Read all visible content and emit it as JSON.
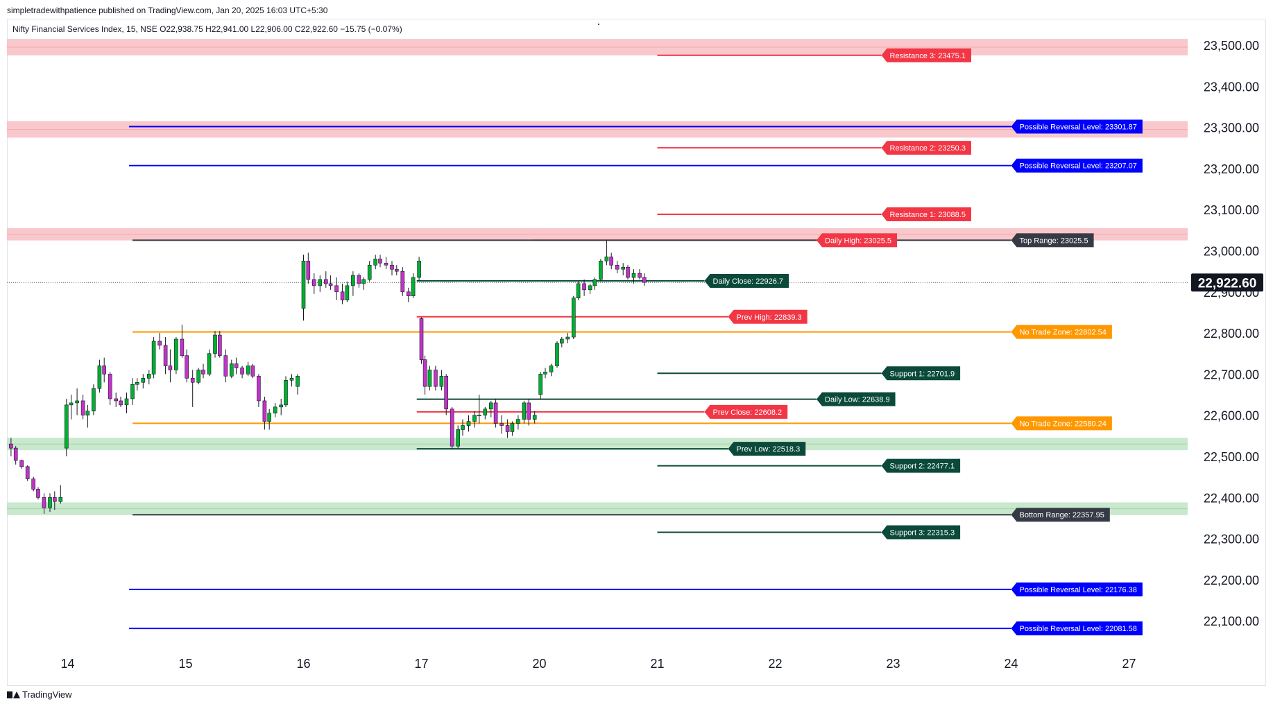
{
  "header": {
    "publisher": "simpletradewithpatience published on TradingView.com, Jan 20, 2025 16:03 UTC+5:30",
    "legend": "Nifty Financial Services Index, 15, NSE  O22,938.75  H22,941.00  L22,906.00  C22,922.60  −15.75 (−0.07%)"
  },
  "footer": {
    "brand": "TradingView",
    "logo_icon": "tradingview-logo-icon"
  },
  "colors": {
    "resistance": "#f23645",
    "support": "#0b4a3a",
    "reversal": "#0000ff",
    "no_trade": "#ff9800",
    "range": "#363a45",
    "up": "#00b031",
    "down": "#c233c8",
    "zone_red": "#f8c2c6",
    "zone_green": "#c3e6c8"
  },
  "chart_data": {
    "type": "candlestick",
    "symbol": "Nifty Financial Services Index",
    "interval": "15",
    "exchange": "NSE",
    "last_price_label": "22,922.60",
    "last_price": 22922.6,
    "ylim": [
      22000,
      23560
    ],
    "y_ticks": [
      {
        "value": 22100,
        "label": "22,100.00"
      },
      {
        "value": 22200,
        "label": "22,200.00"
      },
      {
        "value": 22300,
        "label": "22,300.00"
      },
      {
        "value": 22400,
        "label": "22,400.00"
      },
      {
        "value": 22500,
        "label": "22,500.00"
      },
      {
        "value": 22600,
        "label": "22,600.00"
      },
      {
        "value": 22700,
        "label": "22,700.00"
      },
      {
        "value": 22800,
        "label": "22,800.00"
      },
      {
        "value": 22900,
        "label": "22,900.00"
      },
      {
        "value": 23000,
        "label": "23,000.00"
      },
      {
        "value": 23100,
        "label": "23,100.00"
      },
      {
        "value": 23200,
        "label": "23,200.00"
      },
      {
        "value": 23300,
        "label": "23,300.00"
      },
      {
        "value": 23400,
        "label": "23,400.00"
      },
      {
        "value": 23500,
        "label": "23,500.00"
      }
    ],
    "x_ticks": [
      {
        "t": 1,
        "label": "14"
      },
      {
        "t": 2,
        "label": "15"
      },
      {
        "t": 3,
        "label": "16"
      },
      {
        "t": 4,
        "label": "17"
      },
      {
        "t": 5,
        "label": "20"
      },
      {
        "t": 6,
        "label": "21"
      },
      {
        "t": 7,
        "label": "22"
      },
      {
        "t": 8,
        "label": "23"
      },
      {
        "t": 9,
        "label": "24"
      },
      {
        "t": 10,
        "label": "27"
      }
    ],
    "xlim": [
      0.5,
      10.5
    ],
    "zones": [
      {
        "kind": "red",
        "from": 23475,
        "to": 23515
      },
      {
        "kind": "red",
        "from": 23275,
        "to": 23315
      },
      {
        "kind": "red",
        "from": 23025,
        "to": 23055
      },
      {
        "kind": "green",
        "from": 22515,
        "to": 22545
      },
      {
        "kind": "green",
        "from": 22357,
        "to": 22388
      }
    ],
    "levels": [
      {
        "label": "Resistance 3: 23475.1",
        "value": 23475.1,
        "kind": "resistance",
        "x_start": 6.0,
        "x_end": 7.9
      },
      {
        "label": "Possible Reversal Level: 23301.87",
        "value": 23301.87,
        "kind": "reversal",
        "x_start": 1.52,
        "x_end": 9.0
      },
      {
        "label": "Resistance 2: 23250.3",
        "value": 23250.3,
        "kind": "resistance",
        "x_start": 6.0,
        "x_end": 7.9
      },
      {
        "label": "Possible Reversal Level: 23207.07",
        "value": 23207.07,
        "kind": "reversal",
        "x_start": 1.52,
        "x_end": 9.0
      },
      {
        "label": "Resistance 1: 23088.5",
        "value": 23088.5,
        "kind": "resistance",
        "x_start": 6.0,
        "x_end": 7.9
      },
      {
        "label": "Daily High: 23025.5",
        "value": 23025.5,
        "kind": "resistance",
        "x_start": 4.95,
        "x_end": 7.35
      },
      {
        "label": "Top Range: 23025.5",
        "value": 23025.5,
        "kind": "range",
        "x_start": 1.55,
        "x_end": 9.0
      },
      {
        "label": "Daily Close: 22926.7",
        "value": 22926.7,
        "kind": "support",
        "x_start": 3.96,
        "x_end": 6.4
      },
      {
        "label": "Prev High: 22839.3",
        "value": 22839.3,
        "kind": "resistance",
        "x_start": 3.96,
        "x_end": 6.6
      },
      {
        "label": "No Trade Zone: 22802.54",
        "value": 22802.54,
        "kind": "no_trade",
        "x_start": 1.55,
        "x_end": 9.0
      },
      {
        "label": "Support 1: 22701.9",
        "value": 22701.9,
        "kind": "support",
        "x_start": 6.0,
        "x_end": 7.9
      },
      {
        "label": "Daily Low: 22638.9",
        "value": 22638.9,
        "kind": "support",
        "x_start": 3.96,
        "x_end": 7.35
      },
      {
        "label": "Prev Close: 22608.2",
        "value": 22608.2,
        "kind": "resistance",
        "x_start": 3.96,
        "x_end": 6.4
      },
      {
        "label": "No Trade Zone: 22580.24",
        "value": 22580.24,
        "kind": "no_trade",
        "x_start": 1.55,
        "x_end": 9.0
      },
      {
        "label": "Prev Low: 22518.3",
        "value": 22518.3,
        "kind": "support",
        "x_start": 3.96,
        "x_end": 6.6
      },
      {
        "label": "Support 2: 22477.1",
        "value": 22477.1,
        "kind": "support",
        "x_start": 6.0,
        "x_end": 7.9
      },
      {
        "label": "Bottom Range: 22357.95",
        "value": 22357.95,
        "kind": "range",
        "x_start": 1.55,
        "x_end": 9.0
      },
      {
        "label": "Support 3: 22315.3",
        "value": 22315.3,
        "kind": "support",
        "x_start": 6.0,
        "x_end": 7.9
      },
      {
        "label": "Possible Reversal Level: 22176.38",
        "value": 22176.38,
        "kind": "reversal",
        "x_start": 1.52,
        "x_end": 9.0
      },
      {
        "label": "Possible Reversal Level: 22081.58",
        "value": 22081.58,
        "kind": "reversal",
        "x_start": 1.52,
        "x_end": 9.0
      }
    ],
    "candles": [
      {
        "t": 0.52,
        "o": 22530,
        "h": 22545,
        "l": 22500,
        "c": 22520
      },
      {
        "t": 0.56,
        "o": 22520,
        "h": 22525,
        "l": 22480,
        "c": 22490
      },
      {
        "t": 0.61,
        "o": 22490,
        "h": 22492,
        "l": 22470,
        "c": 22475
      },
      {
        "t": 0.66,
        "o": 22475,
        "h": 22478,
        "l": 22440,
        "c": 22445
      },
      {
        "t": 0.71,
        "o": 22445,
        "h": 22450,
        "l": 22415,
        "c": 22420
      },
      {
        "t": 0.75,
        "o": 22420,
        "h": 22425,
        "l": 22395,
        "c": 22400
      },
      {
        "t": 0.8,
        "o": 22400,
        "h": 22410,
        "l": 22360,
        "c": 22375
      },
      {
        "t": 0.85,
        "o": 22375,
        "h": 22410,
        "l": 22365,
        "c": 22400
      },
      {
        "t": 0.89,
        "o": 22400,
        "h": 22415,
        "l": 22370,
        "c": 22390
      },
      {
        "t": 0.94,
        "o": 22390,
        "h": 22430,
        "l": 22385,
        "c": 22400
      },
      {
        "t": 0.99,
        "o": 22520,
        "h": 22640,
        "l": 22500,
        "c": 22625
      },
      {
        "t": 1.03,
        "o": 22625,
        "h": 22650,
        "l": 22590,
        "c": 22630
      },
      {
        "t": 1.08,
        "o": 22630,
        "h": 22665,
        "l": 22600,
        "c": 22635
      },
      {
        "t": 1.13,
        "o": 22635,
        "h": 22650,
        "l": 22590,
        "c": 22600
      },
      {
        "t": 1.17,
        "o": 22600,
        "h": 22625,
        "l": 22570,
        "c": 22610
      },
      {
        "t": 1.22,
        "o": 22610,
        "h": 22675,
        "l": 22600,
        "c": 22665
      },
      {
        "t": 1.27,
        "o": 22665,
        "h": 22735,
        "l": 22655,
        "c": 22720
      },
      {
        "t": 1.31,
        "o": 22720,
        "h": 22740,
        "l": 22680,
        "c": 22700
      },
      {
        "t": 1.36,
        "o": 22700,
        "h": 22705,
        "l": 22625,
        "c": 22640
      },
      {
        "t": 1.41,
        "o": 22640,
        "h": 22655,
        "l": 22620,
        "c": 22635
      },
      {
        "t": 1.45,
        "o": 22635,
        "h": 22645,
        "l": 22620,
        "c": 22625
      },
      {
        "t": 1.5,
        "o": 22625,
        "h": 22655,
        "l": 22605,
        "c": 22640
      },
      {
        "t": 1.55,
        "o": 22640,
        "h": 22690,
        "l": 22625,
        "c": 22675
      },
      {
        "t": 1.59,
        "o": 22675,
        "h": 22690,
        "l": 22660,
        "c": 22680
      },
      {
        "t": 1.64,
        "o": 22680,
        "h": 22700,
        "l": 22665,
        "c": 22690
      },
      {
        "t": 1.69,
        "o": 22690,
        "h": 22710,
        "l": 22675,
        "c": 22700
      },
      {
        "t": 1.73,
        "o": 22700,
        "h": 22790,
        "l": 22690,
        "c": 22780
      },
      {
        "t": 1.78,
        "o": 22780,
        "h": 22800,
        "l": 22760,
        "c": 22770
      },
      {
        "t": 1.83,
        "o": 22770,
        "h": 22790,
        "l": 22700,
        "c": 22720
      },
      {
        "t": 1.87,
        "o": 22720,
        "h": 22760,
        "l": 22680,
        "c": 22710
      },
      {
        "t": 1.92,
        "o": 22710,
        "h": 22790,
        "l": 22700,
        "c": 22785
      },
      {
        "t": 1.97,
        "o": 22785,
        "h": 22820,
        "l": 22740,
        "c": 22745
      },
      {
        "t": 2.01,
        "o": 22745,
        "h": 22760,
        "l": 22680,
        "c": 22690
      },
      {
        "t": 2.06,
        "o": 22690,
        "h": 22710,
        "l": 22620,
        "c": 22680
      },
      {
        "t": 2.11,
        "o": 22680,
        "h": 22715,
        "l": 22675,
        "c": 22710
      },
      {
        "t": 2.15,
        "o": 22710,
        "h": 22725,
        "l": 22690,
        "c": 22700
      },
      {
        "t": 2.2,
        "o": 22700,
        "h": 22760,
        "l": 22695,
        "c": 22750
      },
      {
        "t": 2.25,
        "o": 22750,
        "h": 22805,
        "l": 22740,
        "c": 22795
      },
      {
        "t": 2.29,
        "o": 22795,
        "h": 22805,
        "l": 22740,
        "c": 22745
      },
      {
        "t": 2.34,
        "o": 22745,
        "h": 22760,
        "l": 22680,
        "c": 22695
      },
      {
        "t": 2.39,
        "o": 22695,
        "h": 22735,
        "l": 22690,
        "c": 22725
      },
      {
        "t": 2.43,
        "o": 22725,
        "h": 22740,
        "l": 22700,
        "c": 22715
      },
      {
        "t": 2.48,
        "o": 22715,
        "h": 22720,
        "l": 22690,
        "c": 22700
      },
      {
        "t": 2.53,
        "o": 22700,
        "h": 22730,
        "l": 22695,
        "c": 22720
      },
      {
        "t": 2.57,
        "o": 22720,
        "h": 22725,
        "l": 22690,
        "c": 22695
      },
      {
        "t": 2.62,
        "o": 22695,
        "h": 22700,
        "l": 22620,
        "c": 22635
      },
      {
        "t": 2.67,
        "o": 22635,
        "h": 22645,
        "l": 22565,
        "c": 22585
      },
      {
        "t": 2.71,
        "o": 22585,
        "h": 22615,
        "l": 22565,
        "c": 22605
      },
      {
        "t": 2.76,
        "o": 22605,
        "h": 22630,
        "l": 22595,
        "c": 22620
      },
      {
        "t": 2.81,
        "o": 22620,
        "h": 22640,
        "l": 22600,
        "c": 22625
      },
      {
        "t": 2.85,
        "o": 22625,
        "h": 22695,
        "l": 22620,
        "c": 22685
      },
      {
        "t": 2.9,
        "o": 22685,
        "h": 22700,
        "l": 22670,
        "c": 22690
      },
      {
        "t": 2.95,
        "o": 22670,
        "h": 22700,
        "l": 22650,
        "c": 22695
      },
      {
        "t": 3.0,
        "o": 22860,
        "h": 22990,
        "l": 22830,
        "c": 22975
      },
      {
        "t": 3.04,
        "o": 22975,
        "h": 22995,
        "l": 22920,
        "c": 22930
      },
      {
        "t": 3.09,
        "o": 22930,
        "h": 22945,
        "l": 22895,
        "c": 22915
      },
      {
        "t": 3.14,
        "o": 22915,
        "h": 22940,
        "l": 22900,
        "c": 22930
      },
      {
        "t": 3.19,
        "o": 22930,
        "h": 22950,
        "l": 22910,
        "c": 22920
      },
      {
        "t": 3.23,
        "o": 22920,
        "h": 22940,
        "l": 22905,
        "c": 22915
      },
      {
        "t": 3.28,
        "o": 22915,
        "h": 22935,
        "l": 22880,
        "c": 22900
      },
      {
        "t": 3.33,
        "o": 22900,
        "h": 22920,
        "l": 22870,
        "c": 22880
      },
      {
        "t": 3.37,
        "o": 22880,
        "h": 22925,
        "l": 22875,
        "c": 22915
      },
      {
        "t": 3.42,
        "o": 22915,
        "h": 22950,
        "l": 22890,
        "c": 22940
      },
      {
        "t": 3.47,
        "o": 22940,
        "h": 22945,
        "l": 22910,
        "c": 22920
      },
      {
        "t": 3.51,
        "o": 22920,
        "h": 22935,
        "l": 22905,
        "c": 22930
      },
      {
        "t": 3.56,
        "o": 22930,
        "h": 22975,
        "l": 22925,
        "c": 22965
      },
      {
        "t": 3.61,
        "o": 22965,
        "h": 22990,
        "l": 22955,
        "c": 22980
      },
      {
        "t": 3.65,
        "o": 22980,
        "h": 22990,
        "l": 22960,
        "c": 22970
      },
      {
        "t": 3.7,
        "o": 22970,
        "h": 22985,
        "l": 22955,
        "c": 22965
      },
      {
        "t": 3.75,
        "o": 22965,
        "h": 22975,
        "l": 22940,
        "c": 22955
      },
      {
        "t": 3.79,
        "o": 22955,
        "h": 22965,
        "l": 22940,
        "c": 22950
      },
      {
        "t": 3.84,
        "o": 22950,
        "h": 22960,
        "l": 22890,
        "c": 22900
      },
      {
        "t": 3.89,
        "o": 22900,
        "h": 22910,
        "l": 22875,
        "c": 22890
      },
      {
        "t": 3.93,
        "o": 22890,
        "h": 22945,
        "l": 22885,
        "c": 22935
      },
      {
        "t": 3.98,
        "o": 22935,
        "h": 22985,
        "l": 22925,
        "c": 22975
      },
      {
        "t": 4.0,
        "o": 22835,
        "h": 22838,
        "l": 22725,
        "c": 22735
      },
      {
        "t": 4.03,
        "o": 22735,
        "h": 22745,
        "l": 22650,
        "c": 22670
      },
      {
        "t": 4.07,
        "o": 22670,
        "h": 22720,
        "l": 22660,
        "c": 22710
      },
      {
        "t": 4.12,
        "o": 22710,
        "h": 22720,
        "l": 22660,
        "c": 22670
      },
      {
        "t": 4.17,
        "o": 22670,
        "h": 22710,
        "l": 22660,
        "c": 22695
      },
      {
        "t": 4.21,
        "o": 22695,
        "h": 22700,
        "l": 22600,
        "c": 22615
      },
      {
        "t": 4.26,
        "o": 22615,
        "h": 22620,
        "l": 22518,
        "c": 22525
      },
      {
        "t": 4.31,
        "o": 22525,
        "h": 22575,
        "l": 22520,
        "c": 22565
      },
      {
        "t": 4.35,
        "o": 22565,
        "h": 22590,
        "l": 22550,
        "c": 22575
      },
      {
        "t": 4.4,
        "o": 22575,
        "h": 22600,
        "l": 22560,
        "c": 22585
      },
      {
        "t": 4.45,
        "o": 22585,
        "h": 22610,
        "l": 22570,
        "c": 22600
      },
      {
        "t": 4.49,
        "o": 22600,
        "h": 22650,
        "l": 22580,
        "c": 22600
      },
      {
        "t": 4.54,
        "o": 22600,
        "h": 22620,
        "l": 22590,
        "c": 22615
      },
      {
        "t": 4.59,
        "o": 22615,
        "h": 22635,
        "l": 22595,
        "c": 22630
      },
      {
        "t": 4.63,
        "o": 22630,
        "h": 22640,
        "l": 22570,
        "c": 22580
      },
      {
        "t": 4.68,
        "o": 22580,
        "h": 22600,
        "l": 22555,
        "c": 22575
      },
      {
        "t": 4.73,
        "o": 22575,
        "h": 22590,
        "l": 22545,
        "c": 22560
      },
      {
        "t": 4.77,
        "o": 22560,
        "h": 22585,
        "l": 22550,
        "c": 22580
      },
      {
        "t": 4.82,
        "o": 22580,
        "h": 22600,
        "l": 22565,
        "c": 22590
      },
      {
        "t": 4.87,
        "o": 22590,
        "h": 22635,
        "l": 22580,
        "c": 22630
      },
      {
        "t": 4.91,
        "o": 22630,
        "h": 22640,
        "l": 22575,
        "c": 22590
      },
      {
        "t": 4.96,
        "o": 22590,
        "h": 22610,
        "l": 22580,
        "c": 22600
      },
      {
        "t": 5.01,
        "o": 22650,
        "h": 22705,
        "l": 22640,
        "c": 22700
      },
      {
        "t": 5.05,
        "o": 22700,
        "h": 22715,
        "l": 22690,
        "c": 22705
      },
      {
        "t": 5.1,
        "o": 22705,
        "h": 22725,
        "l": 22695,
        "c": 22720
      },
      {
        "t": 5.15,
        "o": 22720,
        "h": 22780,
        "l": 22715,
        "c": 22775
      },
      {
        "t": 5.19,
        "o": 22775,
        "h": 22790,
        "l": 22765,
        "c": 22785
      },
      {
        "t": 5.24,
        "o": 22785,
        "h": 22800,
        "l": 22775,
        "c": 22790
      },
      {
        "t": 5.29,
        "o": 22790,
        "h": 22890,
        "l": 22785,
        "c": 22885
      },
      {
        "t": 5.33,
        "o": 22885,
        "h": 22925,
        "l": 22880,
        "c": 22920
      },
      {
        "t": 5.38,
        "o": 22920,
        "h": 22930,
        "l": 22890,
        "c": 22905
      },
      {
        "t": 5.43,
        "o": 22905,
        "h": 22920,
        "l": 22895,
        "c": 22915
      },
      {
        "t": 5.47,
        "o": 22915,
        "h": 22935,
        "l": 22905,
        "c": 22930
      },
      {
        "t": 5.52,
        "o": 22930,
        "h": 22980,
        "l": 22925,
        "c": 22975
      },
      {
        "t": 5.57,
        "o": 22975,
        "h": 23025,
        "l": 22965,
        "c": 22985
      },
      {
        "t": 5.61,
        "o": 22985,
        "h": 22995,
        "l": 22955,
        "c": 22965
      },
      {
        "t": 5.66,
        "o": 22965,
        "h": 22975,
        "l": 22945,
        "c": 22955
      },
      {
        "t": 5.71,
        "o": 22955,
        "h": 22970,
        "l": 22940,
        "c": 22960
      },
      {
        "t": 5.75,
        "o": 22960,
        "h": 22965,
        "l": 22930,
        "c": 22935
      },
      {
        "t": 5.8,
        "o": 22935,
        "h": 22955,
        "l": 22920,
        "c": 22945
      },
      {
        "t": 5.85,
        "o": 22945,
        "h": 22955,
        "l": 22930,
        "c": 22935
      },
      {
        "t": 5.89,
        "o": 22935,
        "h": 22945,
        "l": 22915,
        "c": 22923
      }
    ]
  }
}
